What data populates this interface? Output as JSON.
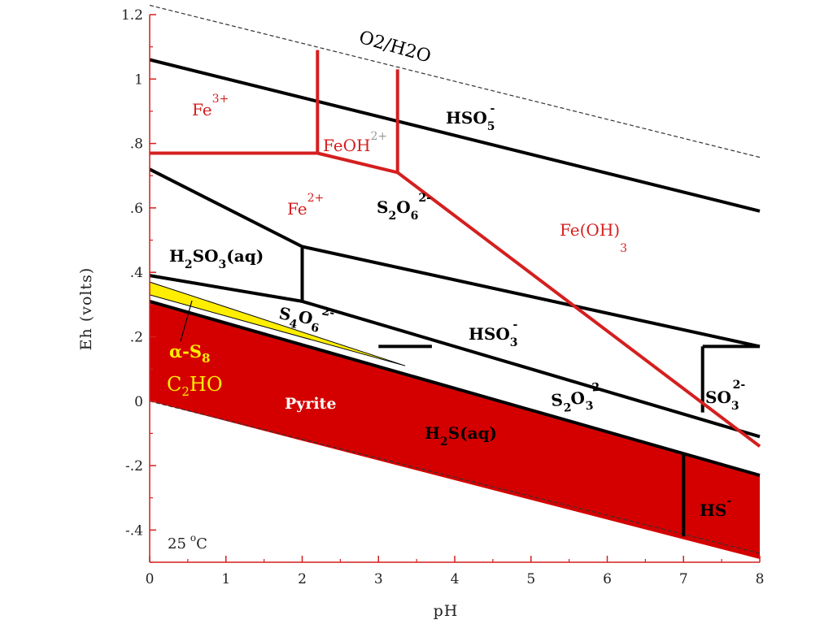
{
  "chart_data": {
    "type": "line",
    "title": "",
    "xlabel": "pH",
    "ylabel": "Eh (volts)",
    "xlim": [
      0,
      8
    ],
    "ylim": [
      -0.5,
      1.2
    ],
    "x_ticks": [
      "0",
      "1",
      "2",
      "3",
      "4",
      "5",
      "6",
      "7",
      "8"
    ],
    "y_ticks": [
      "-.4",
      "-.2",
      "0",
      ".2",
      ".4",
      ".6",
      ".8",
      "1",
      "1.2"
    ],
    "annotation_temperature": "25 °C",
    "temperature": {
      "value": "25",
      "degree": "o",
      "unit": "C"
    },
    "colors": {
      "iron": "#d41f1f",
      "sulfur": "#000000",
      "pyrite_fill": "#d40000",
      "sulfur_fill": "#ffee00",
      "label_yellow": "#ffee00"
    },
    "water_upper_label": "O2/H2O",
    "water_upper": [
      [
        0,
        1.229
      ],
      [
        8,
        0.757
      ]
    ],
    "water_lower": [
      [
        0,
        0.0
      ],
      [
        8,
        -0.472
      ]
    ],
    "iron_boundaries": [
      {
        "name": "Fe3+/Fe2+",
        "points": [
          [
            0,
            0.77
          ],
          [
            2.2,
            0.77
          ]
        ]
      },
      {
        "name": "Fe3+/FeOH2+",
        "points": [
          [
            2.2,
            1.09
          ],
          [
            2.2,
            0.77
          ]
        ]
      },
      {
        "name": "FeOH2+/Fe2+",
        "points": [
          [
            2.2,
            0.77
          ],
          [
            3.25,
            0.71
          ]
        ]
      },
      {
        "name": "FeOH2+/Fe(OH)3",
        "points": [
          [
            3.25,
            1.03
          ],
          [
            3.25,
            0.71
          ]
        ]
      },
      {
        "name": "Fe2+/Fe(OH)3",
        "points": [
          [
            3.25,
            0.71
          ],
          [
            8,
            -0.14
          ]
        ]
      }
    ],
    "sulfur_boundaries": [
      {
        "name": "HSO5-/S2O6 2-",
        "points": [
          [
            0,
            1.06
          ],
          [
            8,
            0.59
          ]
        ]
      },
      {
        "name": "S2O6 2-/H2SO3",
        "points": [
          [
            0,
            0.72
          ],
          [
            2,
            0.48
          ],
          [
            8,
            0.17
          ]
        ]
      },
      {
        "name": "H2SO3/HSO3-",
        "points": [
          [
            2,
            0.48
          ],
          [
            2,
            0.31
          ]
        ]
      },
      {
        "name": "H2SO3/S4O6 2-",
        "points": [
          [
            0,
            0.39
          ],
          [
            2,
            0.31
          ]
        ]
      },
      {
        "name": "S4O6 2-/S2O3 2-",
        "points": [
          [
            2,
            0.31
          ],
          [
            8,
            -0.11
          ]
        ]
      },
      {
        "name": "HSO3-/SO3 2-",
        "points": [
          [
            7.25,
            0.17
          ],
          [
            7.25,
            -0.035
          ]
        ]
      },
      {
        "name": "SO3 2- top",
        "points": [
          [
            7.25,
            0.17
          ],
          [
            8,
            0.17
          ]
        ]
      },
      {
        "name": "S4O6/HSO3 step",
        "points": [
          [
            3,
            0.17
          ],
          [
            3.7,
            0.17
          ]
        ]
      },
      {
        "name": "S2O3 2-/H2S",
        "points": [
          [
            0,
            0.31
          ],
          [
            8,
            -0.23
          ]
        ]
      },
      {
        "name": "H2S/HS-",
        "points": [
          [
            7,
            -0.16
          ],
          [
            7,
            -0.42
          ]
        ]
      }
    ],
    "regions": {
      "pyrite": [
        [
          0,
          0.31
        ],
        [
          8,
          -0.23
        ],
        [
          8,
          -0.49
        ],
        [
          0,
          0.0
        ]
      ],
      "alpha_s8": [
        [
          0,
          0.37
        ],
        [
          3.35,
          0.11
        ],
        [
          0,
          0.33
        ]
      ]
    },
    "labels": {
      "fe3": {
        "base": "Fe",
        "sup": "3+"
      },
      "feoh": {
        "base": "FeOH",
        "sup": "2+"
      },
      "fe2": {
        "base": "Fe",
        "sup": "2+"
      },
      "feoh3": {
        "base": "Fe(OH)",
        "sub": "3"
      },
      "hso5": {
        "base": "HSO",
        "sub": "5",
        "sup": "-"
      },
      "s2o6": {
        "a": "S",
        "sub1": "2",
        "b": "O",
        "sub2": "6",
        "sup": "2-"
      },
      "h2so3": {
        "a": "H",
        "sub1": "2",
        "b": "SO",
        "sub2": "3",
        "c": "(aq)"
      },
      "s4o6": {
        "a": "S",
        "sub1": "4",
        "b": "O",
        "sub2": "6",
        "sup": "2-"
      },
      "hso3": {
        "base": "HSO",
        "sub": "3",
        "sup": "-"
      },
      "s2o3": {
        "a": "S",
        "sub1": "2",
        "b": "O",
        "sub2": "3",
        "sup": "2"
      },
      "so3": {
        "base": "SO",
        "sub": "3",
        "sup": "2-"
      },
      "h2s": {
        "a": "H",
        "sub1": "2",
        "b": "S(aq)"
      },
      "hs": {
        "base": "HS",
        "sup": "-"
      },
      "pyrite": "Pyrite",
      "alpha_s8": {
        "base": "α-S",
        "sub": "8"
      },
      "c2ho": {
        "a": "C",
        "sub": "2",
        "b": "HO"
      }
    }
  }
}
